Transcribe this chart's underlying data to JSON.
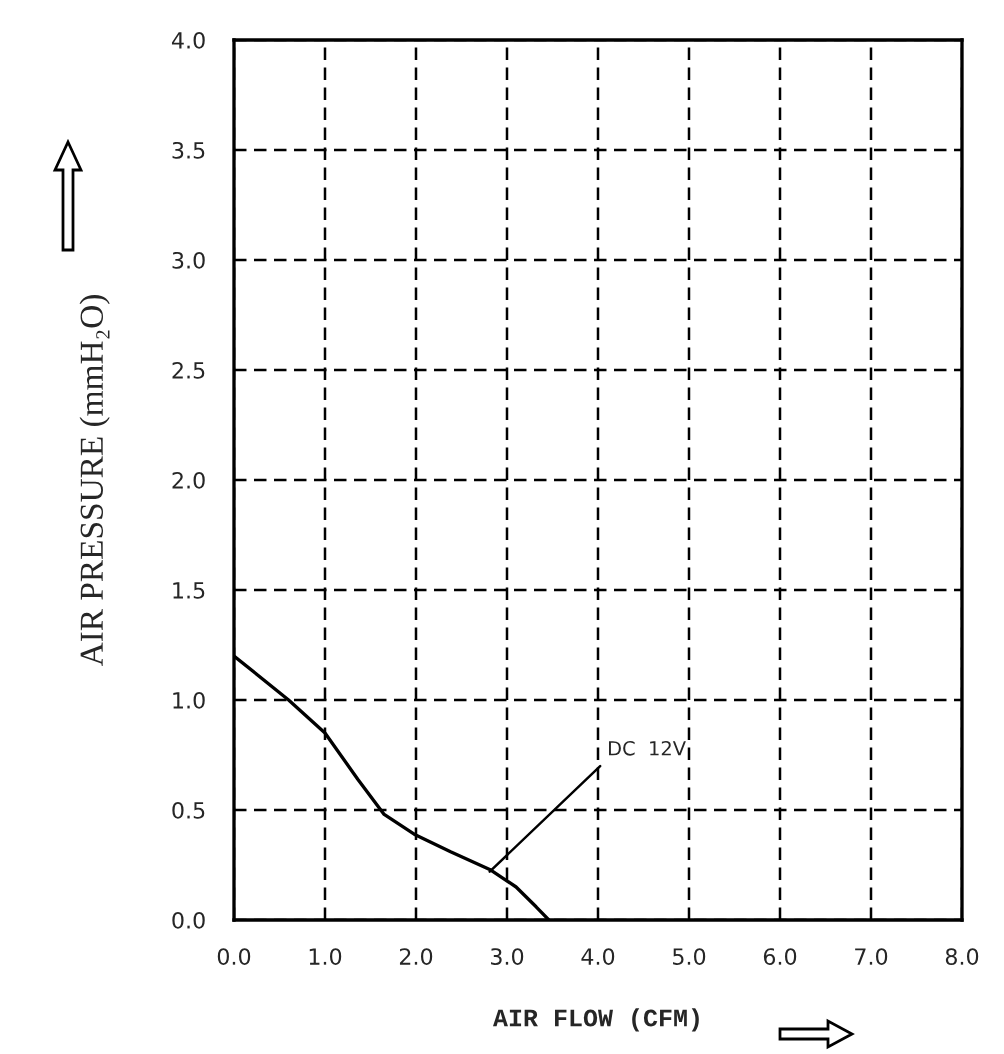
{
  "chart_data": {
    "type": "line",
    "xlabel": "AIR FLOW (CFM)",
    "ylabel": "AIR PRESSURE (mmH₂O)",
    "x": [
      0,
      0.6,
      1.0,
      1.36,
      1.65,
      1.98,
      2.38,
      2.81,
      3.1,
      3.32,
      3.46
    ],
    "series": [
      {
        "color": "#000000",
        "values": [
          1.2,
          1.0,
          0.85,
          0.64,
          0.48,
          0.39,
          0.31,
          0.23,
          0.15,
          0.06,
          0
        ]
      }
    ],
    "xlim": [
      0,
      8
    ],
    "ylim": [
      0,
      4
    ],
    "xticks": [
      {
        "value": 0,
        "label": "0.0"
      },
      {
        "value": 1,
        "label": "1.0"
      },
      {
        "value": 2,
        "label": "2.0"
      },
      {
        "value": 3,
        "label": "3.0"
      },
      {
        "value": 4,
        "label": "4.0"
      },
      {
        "value": 5,
        "label": "5.0"
      },
      {
        "value": 6,
        "label": "6.0"
      },
      {
        "value": 7,
        "label": "7.0"
      },
      {
        "value": 8,
        "label": "8.0"
      }
    ],
    "yticks": [
      {
        "value": 0,
        "label": "0.0"
      },
      {
        "value": 0.5,
        "label": "0.5"
      },
      {
        "value": 1,
        "label": "1.0"
      },
      {
        "value": 1.5,
        "label": "1.5"
      },
      {
        "value": 2,
        "label": "2.0"
      },
      {
        "value": 2.5,
        "label": "2.5"
      },
      {
        "value": 3,
        "label": "3.0"
      },
      {
        "value": 3.5,
        "label": "3.5"
      },
      {
        "value": 4,
        "label": "4.0"
      }
    ],
    "grid": true,
    "line_style": "solid",
    "marker": "none",
    "annotations": [
      {
        "text": "DC  12V",
        "x": 2.81,
        "y": 0.22
      }
    ]
  }
}
